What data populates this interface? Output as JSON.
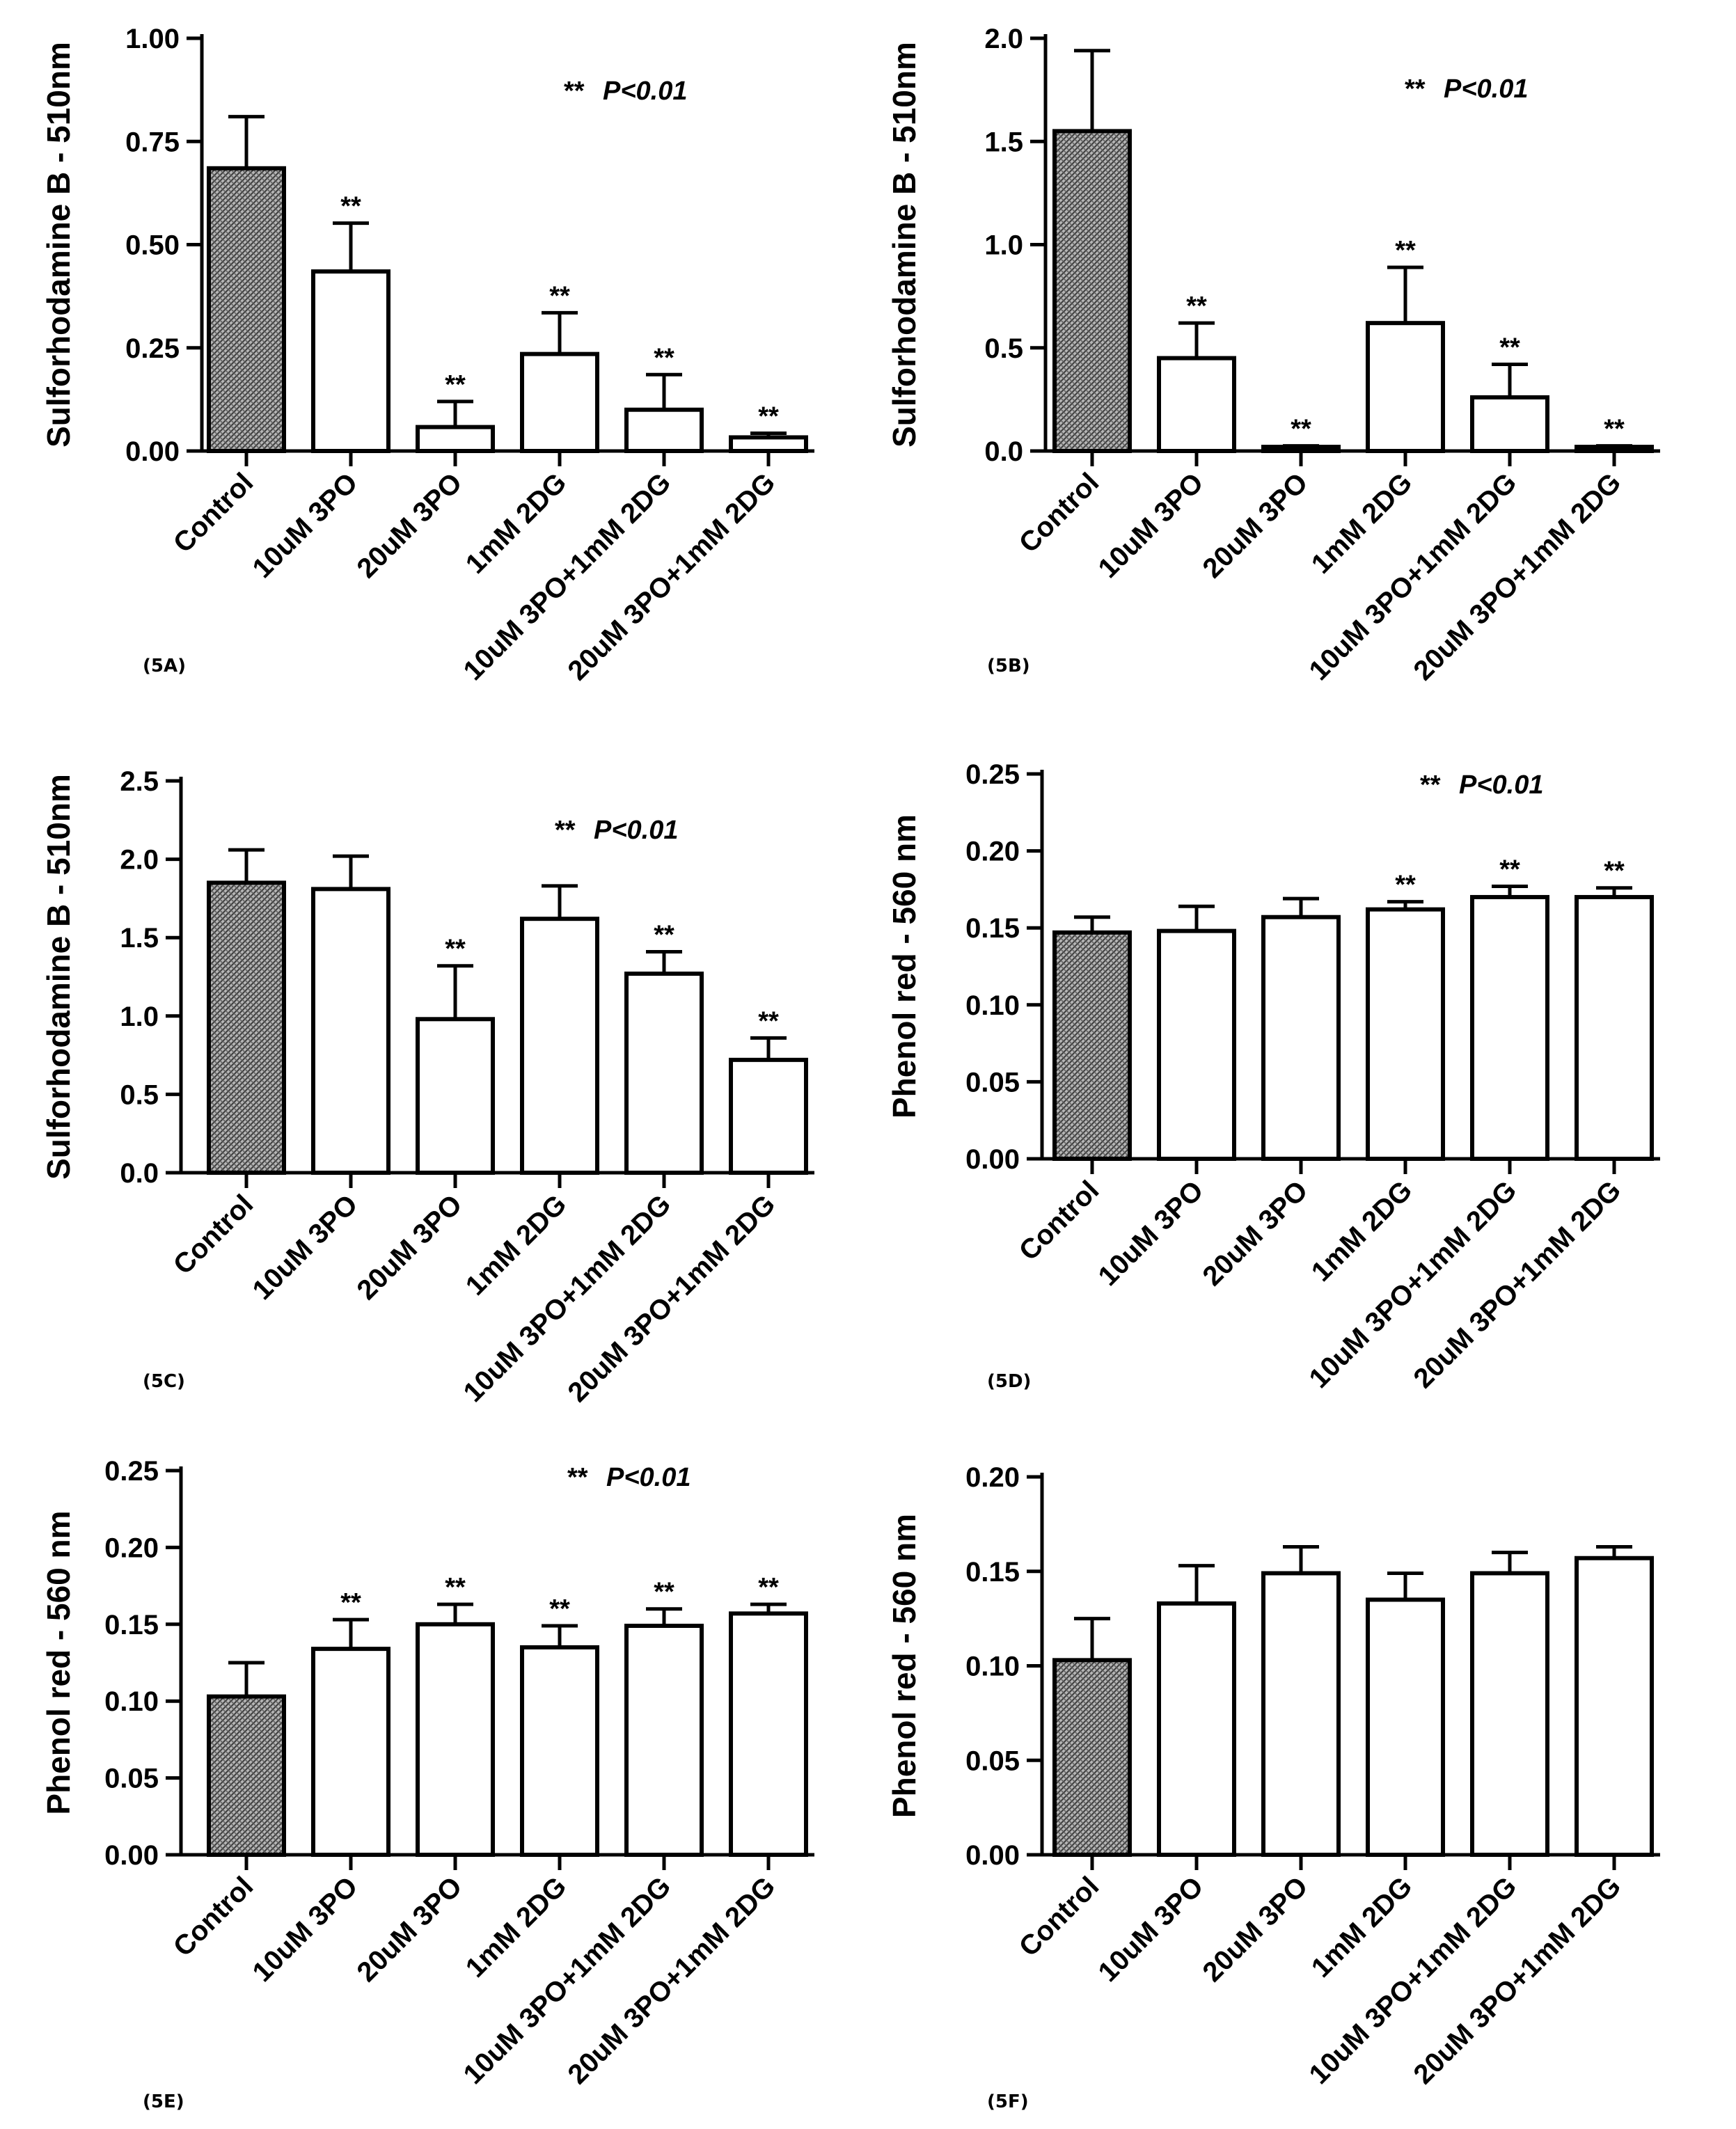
{
  "chart_data": [
    {
      "panel_label": "(5A)",
      "type": "bar",
      "ylabel": "Sulforhodamine B - 510nm",
      "ylim": [
        0,
        1.0
      ],
      "yticks": [
        "0.00",
        "0.25",
        "0.50",
        "0.75",
        "1.00"
      ],
      "categories": [
        "Control",
        "10uM 3PO",
        "20uM 3PO",
        "1mM 2DG",
        "10uM 3PO+1mM 2DG",
        "20uM 3PO+1mM 2DG"
      ],
      "values": [
        0.685,
        0.435,
        0.058,
        0.235,
        0.1,
        0.033
      ],
      "errors": [
        0.125,
        0.117,
        0.062,
        0.1,
        0.085,
        0.01
      ],
      "significance": [
        "",
        "**",
        "**",
        "**",
        "**",
        "**"
      ],
      "note_stars": "**",
      "note_p": "P<0.01"
    },
    {
      "panel_label": "(5B)",
      "type": "bar",
      "ylabel": "Sulforhodamine B - 510nm",
      "ylim": [
        0,
        2.0
      ],
      "yticks": [
        "0.0",
        "0.5",
        "1.0",
        "1.5",
        "2.0"
      ],
      "categories": [
        "Control",
        "10uM 3PO",
        "20uM 3PO",
        "1mM 2DG",
        "10uM 3PO+1mM 2DG",
        "20uM 3PO+1mM 2DG"
      ],
      "values": [
        1.55,
        0.45,
        0.02,
        0.62,
        0.26,
        0.02
      ],
      "errors": [
        0.39,
        0.17,
        0.005,
        0.27,
        0.16,
        0.005
      ],
      "significance": [
        "",
        "**",
        "**",
        "**",
        "**",
        "**"
      ],
      "note_stars": "**",
      "note_p": "P<0.01"
    },
    {
      "panel_label": "(5C)",
      "type": "bar",
      "ylabel": "Sulforhodamine B - 510nm",
      "ylim": [
        0,
        2.5
      ],
      "yticks": [
        "0.0",
        "0.5",
        "1.0",
        "1.5",
        "2.0",
        "2.5"
      ],
      "categories": [
        "Control",
        "10uM 3PO",
        "20uM 3PO",
        "1mM 2DG",
        "10uM 3PO+1mM 2DG",
        "20uM 3PO+1mM 2DG"
      ],
      "values": [
        1.85,
        1.81,
        0.98,
        1.62,
        1.27,
        0.72
      ],
      "errors": [
        0.21,
        0.21,
        0.34,
        0.21,
        0.14,
        0.14
      ],
      "significance": [
        "",
        "",
        "**",
        "",
        "**",
        "**"
      ],
      "note_stars": "**",
      "note_p": "P<0.01"
    },
    {
      "panel_label": "(5D)",
      "type": "bar",
      "ylabel": "Phenol red - 560 nm",
      "ylim": [
        0,
        0.25
      ],
      "yticks": [
        "0.00",
        "0.05",
        "0.10",
        "0.15",
        "0.20",
        "0.25"
      ],
      "categories": [
        "Control",
        "10uM 3PO",
        "20uM 3PO",
        "1mM 2DG",
        "10uM 3PO+1mM 2DG",
        "20uM 3PO+1mM 2DG"
      ],
      "values": [
        0.147,
        0.148,
        0.157,
        0.162,
        0.17,
        0.17
      ],
      "errors": [
        0.01,
        0.016,
        0.012,
        0.005,
        0.007,
        0.006
      ],
      "significance": [
        "",
        "",
        "",
        "**",
        "**",
        "**"
      ],
      "note_stars": "**",
      "note_p": "P<0.01"
    },
    {
      "panel_label": "(5E)",
      "type": "bar",
      "ylabel": "Phenol red - 560 nm",
      "ylim": [
        0,
        0.25
      ],
      "yticks": [
        "0.00",
        "0.05",
        "0.10",
        "0.15",
        "0.20",
        "0.25"
      ],
      "categories": [
        "Control",
        "10uM 3PO",
        "20uM 3PO",
        "1mM 2DG",
        "10uM 3PO+1mM 2DG",
        "20uM 3PO+1mM 2DG"
      ],
      "values": [
        0.103,
        0.134,
        0.15,
        0.135,
        0.149,
        0.157
      ],
      "errors": [
        0.022,
        0.019,
        0.013,
        0.014,
        0.011,
        0.006
      ],
      "significance": [
        "",
        "**",
        "**",
        "**",
        "**",
        "**"
      ],
      "note_stars": "**",
      "note_p": "P<0.01"
    },
    {
      "panel_label": "(5F)",
      "type": "bar",
      "ylabel": "Phenol red - 560 nm",
      "ylim": [
        0,
        0.2
      ],
      "yticks": [
        "0.00",
        "0.05",
        "0.10",
        "0.15",
        "0.20"
      ],
      "categories": [
        "Control",
        "10uM 3PO",
        "20uM 3PO",
        "1mM 2DG",
        "10uM 3PO+1mM 2DG",
        "20uM 3PO+1mM 2DG"
      ],
      "values": [
        0.103,
        0.133,
        0.149,
        0.135,
        0.149,
        0.157
      ],
      "errors": [
        0.022,
        0.02,
        0.014,
        0.014,
        0.011,
        0.006
      ],
      "significance": [
        "",
        "",
        "",
        "",
        "",
        ""
      ],
      "note_stars": "",
      "note_p": ""
    }
  ],
  "colors": {
    "control_fill": "#9a9a9a",
    "bar_fill": "#ffffff",
    "ink": "#000000"
  }
}
